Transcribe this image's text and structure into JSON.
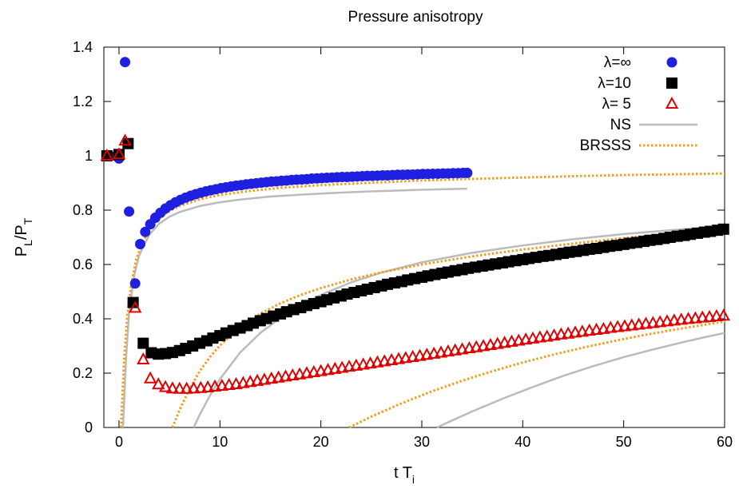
{
  "chart_data": {
    "type": "scatter",
    "title": "Pressure anisotropy",
    "xlabel": "t T",
    "xlabel_sub": "i",
    "ylabel": "P",
    "ylabel_sub1": "L",
    "ylabel_mid": "/P",
    "ylabel_sub2": "T",
    "xlim": [
      -1.5,
      60
    ],
    "ylim": [
      0,
      1.4
    ],
    "xticks": [
      0,
      10,
      20,
      30,
      40,
      50,
      60
    ],
    "xtick_labels": [
      "0",
      "10",
      "20",
      "30",
      "40",
      "50",
      "60"
    ],
    "yticks": [
      0,
      0.2,
      0.4,
      0.6,
      0.8,
      1.0,
      1.2,
      1.4
    ],
    "ytick_labels": [
      "0",
      "0.2",
      "0.4",
      "0.6",
      "0.8",
      "1",
      "1.2",
      "1.4"
    ],
    "grid": false,
    "legend_position": "top-right",
    "series": [
      {
        "name": "λ=∞",
        "kind": "points",
        "marker": "circle",
        "color": "#1f1fe0",
        "x": [
          -0.3,
          0.0,
          0.6,
          1.0,
          1.6,
          2.1,
          2.6,
          3.1,
          3.6,
          4.1,
          4.6,
          5.1,
          5.6,
          6.1,
          6.6,
          7.1,
          7.6,
          8.1,
          8.6,
          9.1,
          9.6,
          10.1,
          10.6,
          11.1,
          11.6,
          12.1,
          12.6,
          13.1,
          13.6,
          14.1,
          14.6,
          15.1,
          15.6,
          16.1,
          16.6,
          17.1,
          17.6,
          18.1,
          18.6,
          19.1,
          19.6,
          20.1,
          20.6,
          21.1,
          21.6,
          22.1,
          22.6,
          23.1,
          23.6,
          24.1,
          24.6,
          25.1,
          25.6,
          26.1,
          26.6,
          27.1,
          27.6,
          28.1,
          28.6,
          29.1,
          29.6,
          30.1,
          30.6,
          31.1,
          31.6,
          32.1,
          32.6,
          33.1,
          33.6,
          34.1,
          34.5
        ],
        "y": [
          1.0,
          0.99,
          1.345,
          0.795,
          0.53,
          0.675,
          0.72,
          0.748,
          0.772,
          0.79,
          0.806,
          0.818,
          0.829,
          0.838,
          0.846,
          0.853,
          0.859,
          0.864,
          0.869,
          0.873,
          0.877,
          0.881,
          0.884,
          0.887,
          0.89,
          0.892,
          0.895,
          0.897,
          0.899,
          0.901,
          0.903,
          0.905,
          0.906,
          0.908,
          0.909,
          0.911,
          0.912,
          0.913,
          0.914,
          0.916,
          0.917,
          0.918,
          0.919,
          0.92,
          0.921,
          0.922,
          0.922,
          0.923,
          0.924,
          0.925,
          0.926,
          0.926,
          0.927,
          0.928,
          0.928,
          0.929,
          0.93,
          0.93,
          0.931,
          0.931,
          0.932,
          0.933,
          0.933,
          0.934,
          0.934,
          0.935,
          0.935,
          0.936,
          0.936,
          0.937,
          0.937
        ]
      },
      {
        "name": "λ=10",
        "kind": "points",
        "marker": "square",
        "color": "#000000",
        "x": [
          -1.2,
          0.0,
          0.9,
          1.4,
          2.4,
          3.2,
          3.9,
          4.6,
          5.3,
          6.0,
          6.6,
          7.3,
          8.0,
          8.7,
          9.3,
          10.0,
          10.6,
          11.3,
          12.0,
          12.7,
          13.3,
          14.0,
          14.6,
          15.3,
          16.0,
          16.6,
          17.3,
          18.0,
          18.6,
          19.3,
          20.0,
          20.6,
          21.3,
          22.0,
          22.6,
          23.3,
          24.0,
          24.6,
          25.3,
          26.0,
          26.6,
          27.3,
          28.0,
          28.6,
          29.3,
          30.0,
          30.6,
          31.3,
          32.0,
          32.6,
          33.3,
          34.0,
          34.6,
          35.3,
          36.0,
          36.6,
          37.3,
          38.0,
          38.6,
          39.3,
          40.0,
          40.6,
          41.3,
          42.0,
          42.6,
          43.3,
          44.0,
          44.6,
          45.3,
          46.0,
          46.6,
          47.3,
          48.0,
          48.6,
          49.3,
          50.0,
          50.6,
          51.3,
          52.0,
          52.6,
          53.3,
          54.0,
          54.6,
          55.3,
          56.0,
          56.6,
          57.3,
          58.0,
          58.6,
          59.3,
          59.9
        ],
        "y": [
          1.0,
          1.005,
          1.045,
          0.46,
          0.31,
          0.275,
          0.27,
          0.272,
          0.276,
          0.283,
          0.291,
          0.3,
          0.31,
          0.319,
          0.329,
          0.338,
          0.348,
          0.357,
          0.366,
          0.375,
          0.384,
          0.393,
          0.401,
          0.41,
          0.418,
          0.426,
          0.434,
          0.441,
          0.449,
          0.456,
          0.463,
          0.47,
          0.477,
          0.484,
          0.491,
          0.497,
          0.503,
          0.509,
          0.515,
          0.521,
          0.527,
          0.532,
          0.537,
          0.543,
          0.548,
          0.553,
          0.558,
          0.563,
          0.568,
          0.572,
          0.577,
          0.581,
          0.586,
          0.59,
          0.594,
          0.598,
          0.602,
          0.606,
          0.61,
          0.614,
          0.618,
          0.622,
          0.626,
          0.63,
          0.633,
          0.637,
          0.641,
          0.645,
          0.648,
          0.652,
          0.656,
          0.659,
          0.663,
          0.667,
          0.67,
          0.674,
          0.678,
          0.681,
          0.685,
          0.689,
          0.692,
          0.696,
          0.7,
          0.704,
          0.707,
          0.711,
          0.715,
          0.719,
          0.722,
          0.726,
          0.73
        ]
      },
      {
        "name": "λ= 5",
        "kind": "points",
        "marker": "triangle-open",
        "color": "#e00000",
        "x": [
          -1.2,
          0.0,
          0.6,
          1.6,
          2.4,
          3.1,
          3.9,
          4.6,
          5.3,
          6.0,
          6.7,
          7.4,
          8.1,
          8.8,
          9.5,
          10.2,
          10.9,
          11.6,
          12.3,
          13.0,
          13.7,
          14.4,
          15.1,
          15.8,
          16.5,
          17.2,
          17.9,
          18.6,
          19.3,
          20.0,
          20.7,
          21.4,
          22.1,
          22.8,
          23.5,
          24.2,
          24.9,
          25.6,
          26.3,
          27.0,
          27.7,
          28.4,
          29.1,
          29.8,
          30.5,
          31.2,
          31.9,
          32.6,
          33.3,
          34.0,
          34.7,
          35.4,
          36.1,
          36.8,
          37.5,
          38.2,
          38.9,
          39.6,
          40.3,
          41.0,
          41.7,
          42.4,
          43.1,
          43.8,
          44.5,
          45.2,
          45.9,
          46.6,
          47.3,
          48.0,
          48.7,
          49.4,
          50.1,
          50.8,
          51.5,
          52.2,
          52.9,
          53.6,
          54.3,
          55.0,
          55.7,
          56.4,
          57.1,
          57.8,
          58.5,
          59.2,
          59.9
        ],
        "y": [
          1.0,
          1.005,
          1.055,
          0.44,
          0.25,
          0.18,
          0.158,
          0.148,
          0.143,
          0.142,
          0.142,
          0.143,
          0.145,
          0.147,
          0.15,
          0.153,
          0.156,
          0.159,
          0.163,
          0.167,
          0.171,
          0.175,
          0.179,
          0.183,
          0.187,
          0.191,
          0.195,
          0.199,
          0.203,
          0.207,
          0.211,
          0.215,
          0.219,
          0.223,
          0.227,
          0.231,
          0.235,
          0.239,
          0.243,
          0.247,
          0.251,
          0.255,
          0.259,
          0.263,
          0.267,
          0.271,
          0.275,
          0.279,
          0.283,
          0.287,
          0.291,
          0.295,
          0.299,
          0.303,
          0.307,
          0.311,
          0.315,
          0.319,
          0.323,
          0.327,
          0.331,
          0.334,
          0.338,
          0.342,
          0.345,
          0.349,
          0.352,
          0.356,
          0.359,
          0.362,
          0.366,
          0.369,
          0.372,
          0.375,
          0.378,
          0.381,
          0.384,
          0.387,
          0.39,
          0.393,
          0.396,
          0.399,
          0.401,
          0.404,
          0.406,
          0.409,
          0.411
        ]
      },
      {
        "name": "NS",
        "kind": "lines",
        "style": "solid",
        "color": "#bbbbbb",
        "curves": [
          {
            "x": [
              0.4,
              0.7,
              1.0,
              1.5,
              2.0,
              3.0,
              4.0,
              5.0,
              6.0,
              8.0,
              10.0,
              12.0,
              15.0,
              18.0,
              21.0,
              25.0,
              30.0,
              34.5
            ],
            "y": [
              0.0,
              0.256,
              0.423,
              0.559,
              0.634,
              0.71,
              0.751,
              0.776,
              0.793,
              0.815,
              0.829,
              0.839,
              0.85,
              0.857,
              0.863,
              0.869,
              0.875,
              0.879
            ]
          },
          {
            "x": [
              7.4,
              8.0,
              9.0,
              10.0,
              12.0,
              14.0,
              16.0,
              18.0,
              20.0,
              23.0,
              26.0,
              30.0,
              35.0,
              40.0,
              45.0,
              50.0,
              55.0,
              60.0
            ],
            "y": [
              0.0,
              0.047,
              0.117,
              0.178,
              0.276,
              0.348,
              0.404,
              0.45,
              0.488,
              0.534,
              0.57,
              0.608,
              0.643,
              0.67,
              0.693,
              0.712,
              0.727,
              0.742
            ]
          },
          {
            "x": [
              31.5,
              33.0,
              35.0,
              38.0,
              41.0,
              44.0,
              47.0,
              50.0,
              53.0,
              56.0,
              58.0,
              60.0
            ],
            "y": [
              0.0,
              0.026,
              0.059,
              0.106,
              0.149,
              0.19,
              0.226,
              0.259,
              0.288,
              0.315,
              0.332,
              0.348
            ]
          }
        ]
      },
      {
        "name": "BRSSS",
        "kind": "lines",
        "style": "dotted",
        "color": "#f0a020",
        "curves": [
          {
            "x": [
              0.2,
              0.5,
              0.8,
              1.2,
              1.7,
              2.3,
              3.0,
              4.0,
              5.0,
              6.0,
              8.0,
              10.0,
              13.0,
              16.0,
              20.0,
              25.0,
              30.0,
              35.0,
              40.0,
              45.0,
              50.0,
              55.0,
              60.0
            ],
            "y": [
              0.0,
              0.245,
              0.405,
              0.526,
              0.617,
              0.681,
              0.728,
              0.77,
              0.797,
              0.815,
              0.84,
              0.856,
              0.871,
              0.882,
              0.892,
              0.901,
              0.909,
              0.915,
              0.92,
              0.925,
              0.929,
              0.932,
              0.935
            ]
          },
          {
            "x": [
              5.3,
              6.0,
              7.0,
              8.0,
              9.0,
              10.0,
              12.0,
              14.0,
              16.0,
              18.0,
              20.0,
              23.0,
              26.0,
              30.0,
              35.0,
              40.0,
              45.0,
              50.0,
              55.0,
              60.0
            ],
            "y": [
              0.0,
              0.065,
              0.143,
              0.207,
              0.259,
              0.302,
              0.369,
              0.419,
              0.457,
              0.488,
              0.513,
              0.545,
              0.571,
              0.6,
              0.63,
              0.655,
              0.677,
              0.697,
              0.714,
              0.73
            ]
          },
          {
            "x": [
              22.8,
              25.0,
              28.0,
              31.0,
              34.0,
              37.0,
              40.0,
              43.0,
              46.0,
              49.0,
              52.0,
              55.0,
              58.0,
              60.0
            ],
            "y": [
              0.0,
              0.04,
              0.089,
              0.133,
              0.172,
              0.207,
              0.239,
              0.268,
              0.294,
              0.318,
              0.34,
              0.36,
              0.378,
              0.39
            ]
          }
        ]
      }
    ]
  }
}
